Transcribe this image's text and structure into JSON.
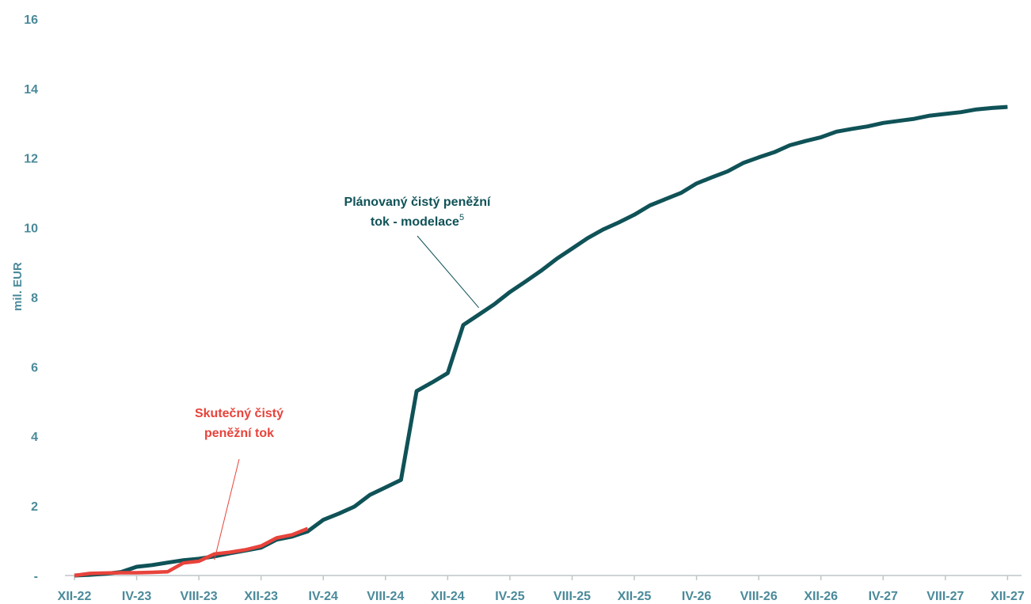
{
  "chart_data": {
    "type": "line",
    "ylabel": "mil. EUR",
    "ylim": [
      0,
      16
    ],
    "y_ticks": [
      {
        "value": 0,
        "label": "-"
      },
      {
        "value": 2,
        "label": "2"
      },
      {
        "value": 4,
        "label": "4"
      },
      {
        "value": 6,
        "label": "6"
      },
      {
        "value": 8,
        "label": "8"
      },
      {
        "value": 10,
        "label": "10"
      },
      {
        "value": 12,
        "label": "12"
      },
      {
        "value": 14,
        "label": "14"
      },
      {
        "value": 16,
        "label": "16"
      }
    ],
    "x_tick_labels": [
      "XII-22",
      "IV-23",
      "VIII-23",
      "XII-23",
      "IV-24",
      "VIII-24",
      "XII-24",
      "IV-25",
      "VIII-25",
      "XII-25",
      "IV-26",
      "VIII-26",
      "XII-26",
      "IV-27",
      "VIII-27",
      "XII-27"
    ],
    "grid": false,
    "series": [
      {
        "name": "Plánovaný čistý peněžní tok - modelace",
        "color": "#0f5257",
        "points": [
          {
            "x": "XII-22",
            "y": 0.0
          },
          {
            "x": "I-23",
            "y": 0.02
          },
          {
            "x": "II-23",
            "y": 0.05
          },
          {
            "x": "III-23",
            "y": 0.1
          },
          {
            "x": "IV-23",
            "y": 0.25
          },
          {
            "x": "V-23",
            "y": 0.3
          },
          {
            "x": "VI-23",
            "y": 0.37
          },
          {
            "x": "VII-23",
            "y": 0.44
          },
          {
            "x": "VIII-23",
            "y": 0.48
          },
          {
            "x": "IX-23",
            "y": 0.55
          },
          {
            "x": "X-23",
            "y": 0.64
          },
          {
            "x": "XI-23",
            "y": 0.72
          },
          {
            "x": "XII-23",
            "y": 0.8
          },
          {
            "x": "I-24",
            "y": 1.03
          },
          {
            "x": "II-24",
            "y": 1.12
          },
          {
            "x": "III-24",
            "y": 1.27
          },
          {
            "x": "IV-24",
            "y": 1.6
          },
          {
            "x": "V-24",
            "y": 1.78
          },
          {
            "x": "VI-24",
            "y": 1.98
          },
          {
            "x": "VII-24",
            "y": 2.32
          },
          {
            "x": "VIII-24",
            "y": 2.53
          },
          {
            "x": "IX-24",
            "y": 2.75
          },
          {
            "x": "X-24",
            "y": 5.3
          },
          {
            "x": "XI-24",
            "y": 5.55
          },
          {
            "x": "XII-24",
            "y": 5.82
          },
          {
            "x": "I-25",
            "y": 7.2
          },
          {
            "x": "II-25",
            "y": 7.5
          },
          {
            "x": "III-25",
            "y": 7.8
          },
          {
            "x": "IV-25",
            "y": 8.15
          },
          {
            "x": "V-25",
            "y": 8.45
          },
          {
            "x": "VI-25",
            "y": 8.76
          },
          {
            "x": "VII-25",
            "y": 9.1
          },
          {
            "x": "VIII-25",
            "y": 9.4
          },
          {
            "x": "IX-25",
            "y": 9.7
          },
          {
            "x": "X-25",
            "y": 9.95
          },
          {
            "x": "XI-25",
            "y": 10.15
          },
          {
            "x": "XII-25",
            "y": 10.37
          },
          {
            "x": "I-26",
            "y": 10.64
          },
          {
            "x": "II-26",
            "y": 10.82
          },
          {
            "x": "III-26",
            "y": 11.0
          },
          {
            "x": "IV-26",
            "y": 11.27
          },
          {
            "x": "V-26",
            "y": 11.45
          },
          {
            "x": "VI-26",
            "y": 11.62
          },
          {
            "x": "VII-26",
            "y": 11.86
          },
          {
            "x": "VIII-26",
            "y": 12.02
          },
          {
            "x": "IX-26",
            "y": 12.17
          },
          {
            "x": "X-26",
            "y": 12.37
          },
          {
            "x": "XI-26",
            "y": 12.49
          },
          {
            "x": "XII-26",
            "y": 12.6
          },
          {
            "x": "I-27",
            "y": 12.76
          },
          {
            "x": "II-27",
            "y": 12.84
          },
          {
            "x": "III-27",
            "y": 12.91
          },
          {
            "x": "IV-27",
            "y": 13.01
          },
          {
            "x": "V-27",
            "y": 13.07
          },
          {
            "x": "VI-27",
            "y": 13.13
          },
          {
            "x": "VII-27",
            "y": 13.22
          },
          {
            "x": "VIII-27",
            "y": 13.27
          },
          {
            "x": "IX-27",
            "y": 13.32
          },
          {
            "x": "X-27",
            "y": 13.4
          },
          {
            "x": "XI-27",
            "y": 13.44
          },
          {
            "x": "XII-27",
            "y": 13.47
          }
        ]
      },
      {
        "name": "Skutečný čistý peněžní tok",
        "color": "#e8433b",
        "points": [
          {
            "x": "XII-22",
            "y": 0.0
          },
          {
            "x": "I-23",
            "y": 0.06
          },
          {
            "x": "II-23",
            "y": 0.07
          },
          {
            "x": "III-23",
            "y": 0.08
          },
          {
            "x": "IV-23",
            "y": 0.08
          },
          {
            "x": "V-23",
            "y": 0.09
          },
          {
            "x": "VI-23",
            "y": 0.11
          },
          {
            "x": "VII-23",
            "y": 0.36
          },
          {
            "x": "VIII-23",
            "y": 0.41
          },
          {
            "x": "IX-23",
            "y": 0.62
          },
          {
            "x": "X-23",
            "y": 0.67
          },
          {
            "x": "XI-23",
            "y": 0.74
          },
          {
            "x": "XII-23",
            "y": 0.85
          },
          {
            "x": "I-24",
            "y": 1.08
          },
          {
            "x": "II-24",
            "y": 1.17
          },
          {
            "x": "III-24",
            "y": 1.35
          }
        ]
      }
    ],
    "annotations": [
      {
        "lines": [
          "Plánovaný čistý peněžní",
          "tok - modelace"
        ],
        "superscript": "5",
        "color": "#0f5257",
        "target": {
          "x": "II-25",
          "y": 7.7
        }
      },
      {
        "lines": [
          "Skutečný čistý",
          "peněžní tok"
        ],
        "superscript": "",
        "color": "#e8433b",
        "target": {
          "x": "IX-23",
          "y": 0.45
        }
      }
    ],
    "axis_text_color": "#4a8a9a",
    "axis_line_color": "#bfc5c7"
  }
}
